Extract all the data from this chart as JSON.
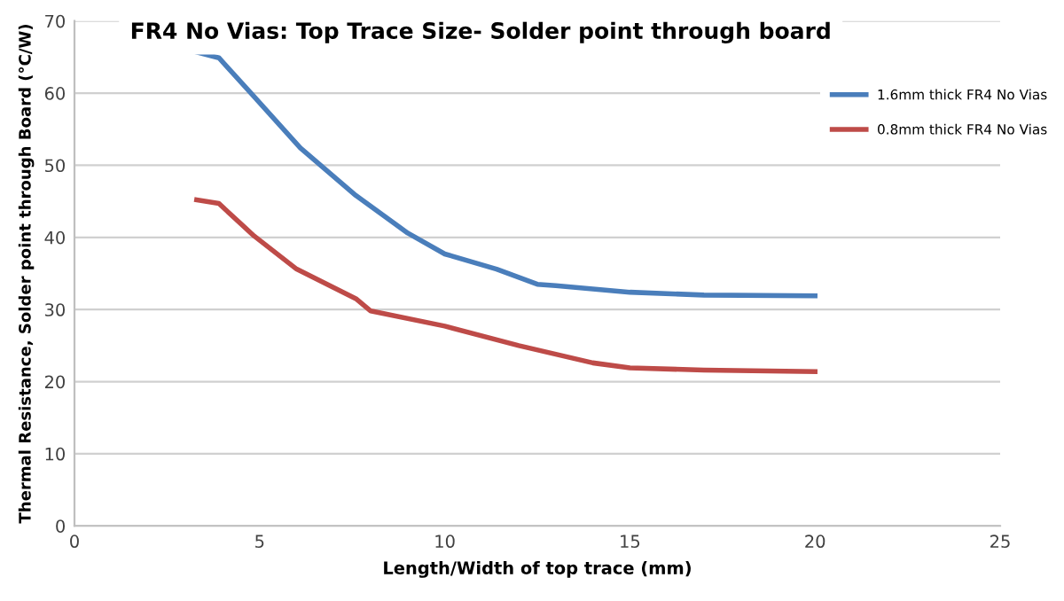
{
  "chart_data": {
    "type": "line",
    "title": "FR4 No Vias: Top Trace Size- Solder point through board",
    "xlabel": "Length/Width of top trace (mm)",
    "ylabel": "Thermal Resistance, Solder point through Board (°C/W)",
    "xlim": [
      0,
      25
    ],
    "xticks": [
      0,
      5,
      10,
      15,
      20,
      25
    ],
    "ylim": [
      0,
      70
    ],
    "yticks": [
      0,
      10,
      20,
      30,
      40,
      50,
      60,
      70
    ],
    "grid": "y",
    "legend": "top right",
    "marker": "none",
    "line_style": "solid",
    "series": [
      {
        "name": "1.6mm thick FR4 No Vias",
        "color": "#4a7ebb",
        "x": [
          3.3,
          3.9,
          4.8,
          6.1,
          7.6,
          9.0,
          10.0,
          11.4,
          12.5,
          13.0,
          15.0,
          17.0,
          20.0
        ],
        "values": [
          65.7,
          64.9,
          59.8,
          52.4,
          45.8,
          40.6,
          37.7,
          35.6,
          33.5,
          33.3,
          32.4,
          32.0,
          31.9
        ]
      },
      {
        "name": "0.8mm thick FR4 No Vias",
        "color": "#be4b48",
        "x": [
          3.3,
          3.9,
          4.85,
          6.0,
          7.6,
          8.0,
          10.0,
          12.0,
          14.0,
          15.0,
          17.0,
          20.0
        ],
        "values": [
          45.2,
          44.7,
          40.2,
          35.6,
          31.5,
          29.8,
          27.7,
          25.0,
          22.6,
          21.9,
          21.6,
          21.4
        ]
      }
    ]
  }
}
